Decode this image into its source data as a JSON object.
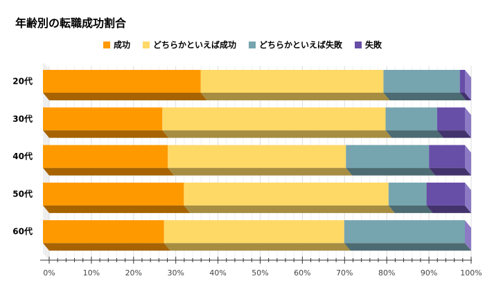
{
  "chart_data": {
    "type": "bar",
    "orientation": "horizontal",
    "stacked": "percent",
    "three_d": true,
    "title": "年齢別の転職成功割合",
    "categories": [
      "20代",
      "30代",
      "40代",
      "50代",
      "60代"
    ],
    "series": [
      {
        "name": "成功",
        "color": "#FF9900",
        "values": [
          37.4,
          28.3,
          29.6,
          33.4,
          28.7
        ]
      },
      {
        "name": "どちらかといえば成功",
        "color": "#FFD966",
        "values": [
          43.3,
          52.9,
          42.2,
          48.5,
          42.7
        ]
      },
      {
        "name": "どちらかといえば失敗",
        "color": "#76A5AF",
        "values": [
          18.1,
          12.2,
          19.7,
          9.0,
          28.6
        ]
      },
      {
        "name": "失敗",
        "color": "#674EA7",
        "values": [
          1.2,
          6.6,
          8.5,
          9.1,
          0
        ]
      }
    ],
    "xlim": [
      0,
      100
    ],
    "xticks": [
      "0%",
      "10%",
      "20%",
      "30%",
      "40%",
      "50%",
      "60%",
      "70%",
      "80%",
      "90%",
      "100%"
    ],
    "grid": true,
    "legend_position": "top"
  }
}
